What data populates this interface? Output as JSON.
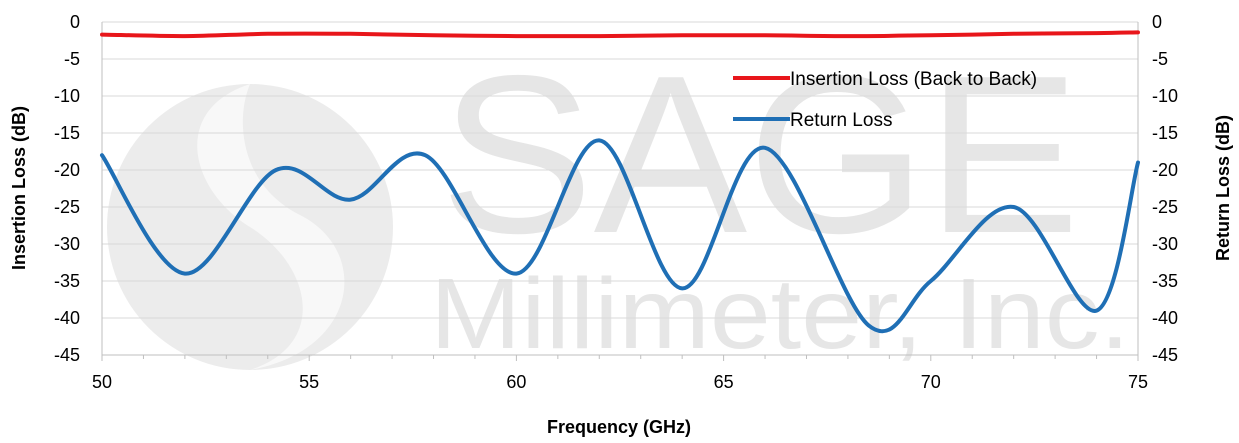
{
  "chart_data": {
    "type": "line",
    "xlabel": "Frequency (GHz)",
    "ylabel": "Insertion Loss (dB)",
    "y2label": "Return Loss (dB)",
    "xlim": [
      50,
      75
    ],
    "ylim": [
      -45,
      0
    ],
    "y2lim": [
      -45,
      0
    ],
    "xticks": [
      "50",
      "55",
      "60",
      "65",
      "70",
      "75"
    ],
    "yticks": [
      "0",
      "-5",
      "-10",
      "-15",
      "-20",
      "-25",
      "-30",
      "-35",
      "-40",
      "-45"
    ],
    "y2ticks": [
      "0",
      "-5",
      "-10",
      "-15",
      "-20",
      "-25",
      "-30",
      "-35",
      "-40",
      "-45"
    ],
    "grid": true,
    "legend_position": "top-right",
    "watermark": {
      "line1": "SAGE",
      "line2": "Millimeter, Inc."
    },
    "series": [
      {
        "name": "Insertion Loss (Back to Back)",
        "color": "#e8161b",
        "x": [
          50,
          52,
          54,
          56,
          58,
          60,
          62,
          64,
          66,
          68,
          70,
          72,
          74,
          75
        ],
        "values": [
          -1.7,
          -1.9,
          -1.6,
          -1.6,
          -1.8,
          -1.9,
          -1.9,
          -1.8,
          -1.8,
          -1.9,
          -1.8,
          -1.6,
          -1.5,
          -1.4
        ]
      },
      {
        "name": "Return Loss",
        "color": "#1f6fb5",
        "x": [
          50,
          52,
          54.2,
          56,
          57.8,
          60,
          62,
          64,
          66,
          68.5,
          70,
          72,
          74,
          75
        ],
        "values": [
          -18,
          -34,
          -20,
          -24,
          -18,
          -34,
          -16,
          -36,
          -17,
          -41,
          -35,
          -25,
          -39,
          -19
        ]
      }
    ]
  }
}
